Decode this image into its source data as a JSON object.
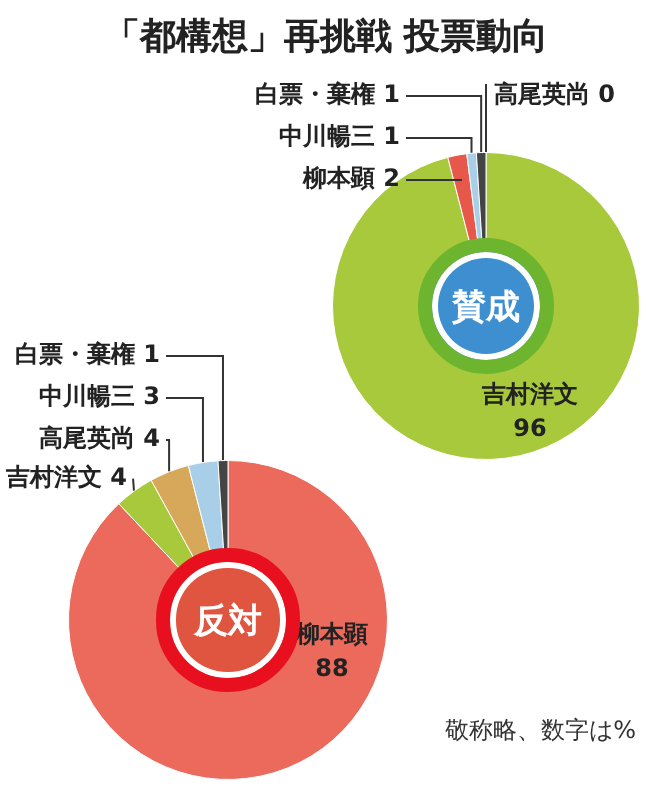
{
  "chart_data": [
    {
      "type": "donut",
      "title": "「都構想」再挑戦 投票動向",
      "subtitle": "賛成",
      "categories": [
        "吉村洋文",
        "柳本顕",
        "中川暢三",
        "白票・棄権",
        "高尾英尚"
      ],
      "values": [
        96,
        2,
        1,
        1,
        0
      ],
      "value_labels": [
        "96",
        "2",
        "1",
        "1",
        "0"
      ],
      "colors": [
        "#a8c93b",
        "#e8584a",
        "#a9cfe8",
        "#444444",
        "#d8a85a"
      ],
      "legend": false
    },
    {
      "type": "donut",
      "subtitle": "反対",
      "categories": [
        "柳本顕",
        "吉村洋文",
        "高尾英尚",
        "中川暢三",
        "白票・棄権"
      ],
      "values": [
        88,
        4,
        4,
        3,
        1
      ],
      "colors": [
        "#ec6a5c",
        "#a8c93b",
        "#d8a85a",
        "#a9cfe8",
        "#444444"
      ],
      "data_labels": true,
      "legend": false,
      "annotations": [
        "敬称略、数字は%"
      ]
    }
  ]
}
